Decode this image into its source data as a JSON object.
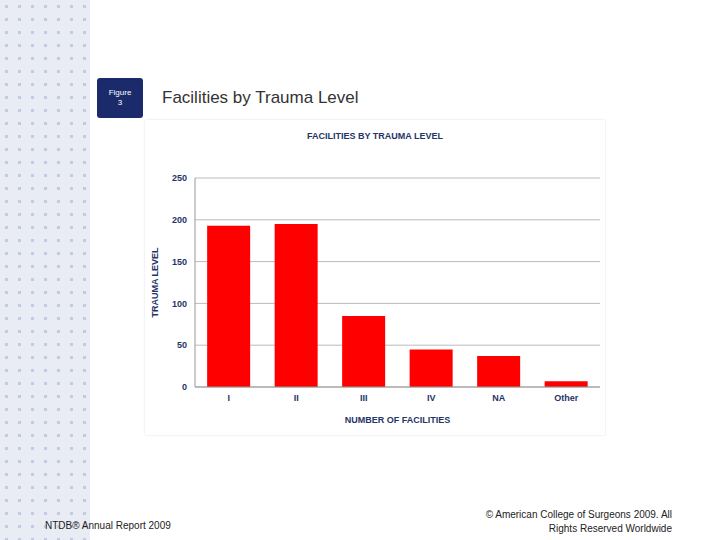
{
  "chart_data": {
    "type": "bar",
    "title": "FACILITIES BY TRAUMA LEVEL",
    "x_label": "NUMBER OF FACILITIES",
    "y_label": "TRAUMA LEVEL",
    "categories": [
      "I",
      "II",
      "III",
      "IV",
      "NA",
      "Other"
    ],
    "values": [
      193,
      195,
      85,
      45,
      37,
      7
    ],
    "color": "#ff0000",
    "ylim": [
      0,
      250
    ],
    "yticks": [
      0,
      50,
      100,
      150,
      200,
      250
    ],
    "grid": true
  },
  "slide": {
    "figure_label": [
      "Figure",
      "3"
    ],
    "title": "Facilities by Trauma Level",
    "footer_left": "NTDB® Annual Report 2009",
    "footer_right": [
      "© American College of Surgeons 2009.  All",
      "Rights Reserved Worldwide"
    ]
  }
}
